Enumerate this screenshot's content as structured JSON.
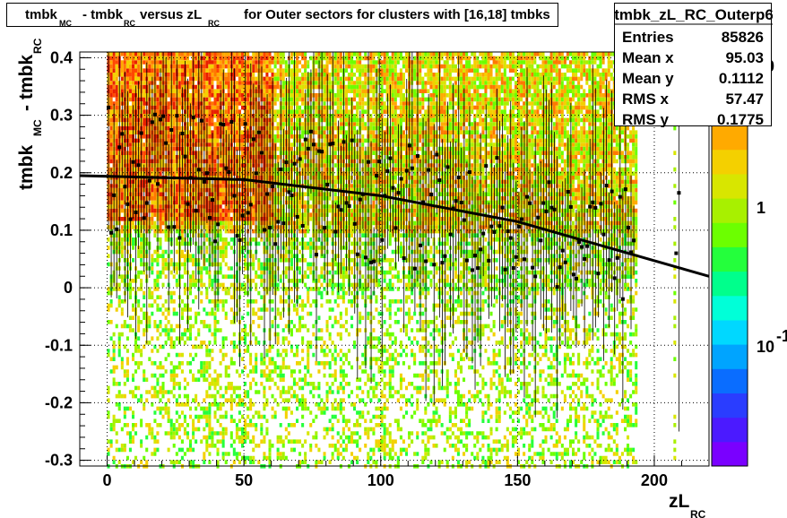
{
  "chart_data": {
    "type": "heatmap",
    "title_parts": {
      "a": "tmbk",
      "a_sub": "MC",
      "b": "- tmbk",
      "b_sub": "RC",
      "c": "versus zL",
      "c_sub": "RC",
      "d": "for Outer sectors for clusters with [16,18] tmbks"
    },
    "xlabel": "zL",
    "xlabel_sub": "RC",
    "ylabel_parts": {
      "a": "tmbk",
      "a_sub": "MC",
      "b": "- tmbk",
      "b_sub": "RC"
    },
    "xlim": [
      -10,
      220
    ],
    "ylim": [
      -0.31,
      0.41
    ],
    "x_ticks": [
      "0",
      "50",
      "100",
      "150",
      "200"
    ],
    "y_ticks": [
      "-0.3",
      "-0.2",
      "-0.1",
      "0",
      "0.1",
      "0.2",
      "0.3",
      "0.4"
    ],
    "x_tick_values": [
      0,
      50,
      100,
      150,
      200
    ],
    "y_tick_values": [
      -0.3,
      -0.2,
      -0.1,
      0,
      0.1,
      0.2,
      0.3,
      0.4
    ],
    "grid": true,
    "log_z": true,
    "z_ticks": [
      "10",
      "1",
      "10"
    ],
    "z_tick_sups": [
      "",
      "",
      "-1"
    ],
    "fit_line": {
      "x": [
        -10,
        50,
        100,
        150,
        220
      ],
      "y": [
        0.195,
        0.188,
        0.16,
        0.115,
        0.02
      ]
    },
    "palette": [
      "#7a00ff",
      "#4b1aff",
      "#2a3dff",
      "#0a6dff",
      "#00a4ff",
      "#00d8ff",
      "#00ffd8",
      "#00ff8c",
      "#24ff3c",
      "#6cff00",
      "#a8f000",
      "#d8e600",
      "#f4d000",
      "#ffaa00",
      "#ff7800",
      "#ff4800",
      "#e82000"
    ],
    "stats": {
      "name": "tmbk_zL_RC_Outerp6",
      "rows": [
        {
          "label": "Entries",
          "value": "85826"
        },
        {
          "label": "Mean x",
          "value": "95.03"
        },
        {
          "label": "Mean y",
          "value": "0.1112"
        },
        {
          "label": "RMS x",
          "value": "57.47"
        },
        {
          "label": "RMS y",
          "value": "0.1775"
        }
      ]
    }
  }
}
